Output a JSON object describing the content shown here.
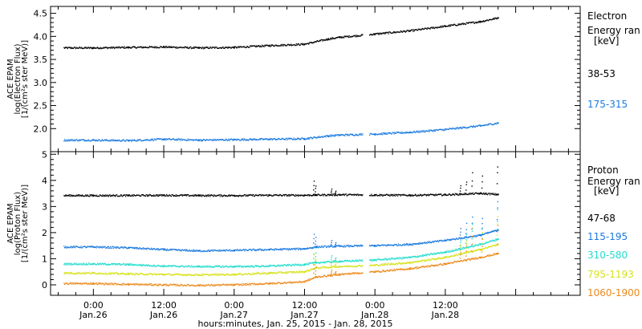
{
  "chart_data": [
    {
      "type": "scatter",
      "ylabel": [
        "ACE EPAM",
        "log(Electron Flux)",
        "[1/(cm²s ster MeV)]"
      ],
      "ylim": [
        1.5,
        4.65
      ],
      "yticks": [
        2.0,
        2.5,
        3.0,
        3.5,
        4.0,
        4.5
      ],
      "ytick_labels": [
        "2.0",
        "2.5",
        "3.0",
        "3.5",
        "4.0",
        "4.5"
      ],
      "legend_title": [
        "Electron",
        "Energy ran",
        "[keV]"
      ],
      "series": [
        {
          "name": "38-53",
          "color": "#000000",
          "x": [
            0,
            6,
            12,
            18,
            24,
            30,
            36,
            40,
            42,
            48,
            54,
            60,
            66,
            69
          ],
          "y": [
            3.75,
            3.76,
            3.77,
            3.75,
            3.76,
            3.8,
            3.83,
            3.94,
            3.98,
            4.05,
            4.12,
            4.22,
            4.32,
            4.4
          ]
        },
        {
          "name": "175-315",
          "color": "#1a7ae0",
          "x": [
            0,
            6,
            12,
            18,
            24,
            30,
            36,
            40,
            42,
            48,
            54,
            60,
            66,
            69
          ],
          "y": [
            1.75,
            1.74,
            1.77,
            1.75,
            1.76,
            1.77,
            1.78,
            1.84,
            1.86,
            1.88,
            1.92,
            1.98,
            2.06,
            2.12
          ]
        }
      ]
    },
    {
      "type": "scatter",
      "ylabel": [
        "ACE EPAM",
        "log(Proton Flux)",
        "[1/(cm²s ster MeV)]"
      ],
      "ylim": [
        -0.4,
        5.1
      ],
      "yticks": [
        0,
        1,
        2,
        3,
        4,
        5
      ],
      "ytick_labels": [
        "0",
        "1",
        "2",
        "3",
        "4",
        "5"
      ],
      "legend_title": [
        "Proton",
        "Energy ran",
        "[keV]"
      ],
      "series": [
        {
          "name": "47-68",
          "color": "#000000",
          "x": [
            0,
            6,
            12,
            18,
            24,
            30,
            36,
            38,
            42,
            48,
            54,
            60,
            66,
            69
          ],
          "y": [
            3.42,
            3.42,
            3.43,
            3.42,
            3.42,
            3.43,
            3.43,
            3.44,
            3.45,
            3.44,
            3.43,
            3.45,
            3.5,
            3.46
          ]
        },
        {
          "name": "115-195",
          "color": "#1a7ae0",
          "x": [
            0,
            6,
            12,
            18,
            24,
            30,
            36,
            38,
            42,
            48,
            54,
            60,
            66,
            69
          ],
          "y": [
            1.45,
            1.42,
            1.35,
            1.3,
            1.32,
            1.35,
            1.38,
            1.45,
            1.48,
            1.5,
            1.55,
            1.7,
            1.9,
            2.1
          ]
        },
        {
          "name": "310-580",
          "color": "#22dccc",
          "x": [
            0,
            6,
            12,
            18,
            24,
            30,
            36,
            38,
            42,
            48,
            54,
            60,
            66,
            69
          ],
          "y": [
            0.8,
            0.78,
            0.72,
            0.7,
            0.7,
            0.72,
            0.78,
            0.85,
            0.9,
            0.95,
            1.05,
            1.25,
            1.55,
            1.75
          ]
        },
        {
          "name": "795-1193",
          "color": "#d6e21a",
          "x": [
            0,
            6,
            12,
            18,
            24,
            30,
            36,
            38,
            42,
            48,
            54,
            60,
            66,
            69
          ],
          "y": [
            0.45,
            0.42,
            0.4,
            0.38,
            0.4,
            0.45,
            0.5,
            0.65,
            0.7,
            0.75,
            0.85,
            1.05,
            1.35,
            1.55
          ]
        },
        {
          "name": "1060-1900",
          "color": "#ec8a1c",
          "x": [
            0,
            6,
            12,
            18,
            24,
            30,
            36,
            38,
            42,
            48,
            54,
            60,
            66,
            69
          ],
          "y": [
            0.05,
            0.02,
            0.0,
            -0.02,
            0.0,
            0.05,
            0.12,
            0.3,
            0.4,
            0.5,
            0.62,
            0.8,
            1.05,
            1.2
          ]
        }
      ]
    }
  ],
  "xaxis": {
    "label": "hours:minutes, Jan. 25, 2015 - Jan. 28, 2015",
    "hours_range": [
      -7.3,
      83
    ],
    "ticks": [
      {
        "t": 0,
        "time": "0:00",
        "date": "Jan.26"
      },
      {
        "t": 12,
        "time": "12:00",
        "date": "Jan.26"
      },
      {
        "t": 24,
        "time": "0:00",
        "date": "Jan.27"
      },
      {
        "t": 36,
        "time": "12:00",
        "date": "Jan.27"
      },
      {
        "t": 48,
        "time": "0:00",
        "date": "Jan.28"
      },
      {
        "t": 60,
        "time": "12:00",
        "date": "Jan.28"
      }
    ],
    "minor_step_hours": 3
  }
}
